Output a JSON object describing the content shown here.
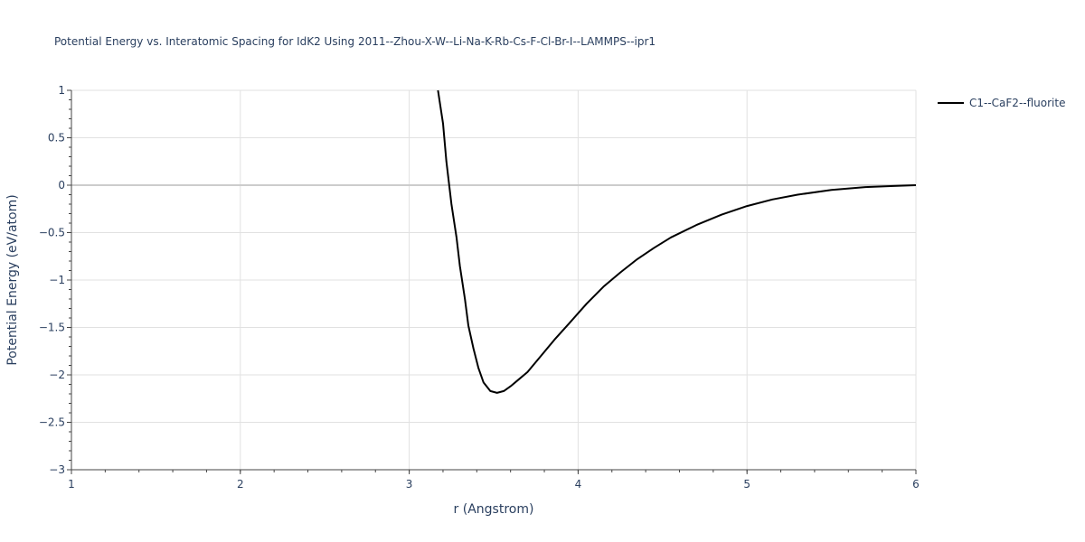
{
  "chart_data": {
    "type": "line",
    "title": "Potential Energy vs. Interatomic Spacing for IdK2 Using 2011--Zhou-X-W--Li-Na-K-Rb-Cs-F-Cl-Br-I--LAMMPS--ipr1",
    "xlabel": "r (Angstrom)",
    "ylabel": "Potential Energy (eV/atom)",
    "xlim": [
      1,
      6
    ],
    "ylim": [
      -3,
      1
    ],
    "x_ticks": [
      "1",
      "2",
      "3",
      "4",
      "5",
      "6"
    ],
    "y_ticks": [
      "1",
      "0.5",
      "0",
      "−0.5",
      "−1",
      "−1.5",
      "−2",
      "−2.5",
      "−3"
    ],
    "grid": true,
    "legend_position": "top-right",
    "series": [
      {
        "name": "C1--CaF2--fluorite",
        "color": "#000000",
        "x": [
          3.17,
          3.2,
          3.22,
          3.25,
          3.28,
          3.3,
          3.33,
          3.35,
          3.38,
          3.41,
          3.44,
          3.48,
          3.52,
          3.56,
          3.6,
          3.64,
          3.7,
          3.78,
          3.86,
          3.95,
          4.05,
          4.15,
          4.25,
          4.35,
          4.45,
          4.55,
          4.7,
          4.85,
          5.0,
          5.15,
          5.3,
          5.5,
          5.7,
          5.85,
          6.0
        ],
        "y": [
          1.0,
          0.65,
          0.25,
          -0.2,
          -0.55,
          -0.85,
          -1.2,
          -1.48,
          -1.72,
          -1.93,
          -2.08,
          -2.17,
          -2.19,
          -2.17,
          -2.12,
          -2.06,
          -1.97,
          -1.8,
          -1.63,
          -1.45,
          -1.25,
          -1.07,
          -0.92,
          -0.78,
          -0.66,
          -0.55,
          -0.42,
          -0.31,
          -0.22,
          -0.15,
          -0.1,
          -0.05,
          -0.02,
          -0.01,
          0.0
        ]
      }
    ]
  }
}
